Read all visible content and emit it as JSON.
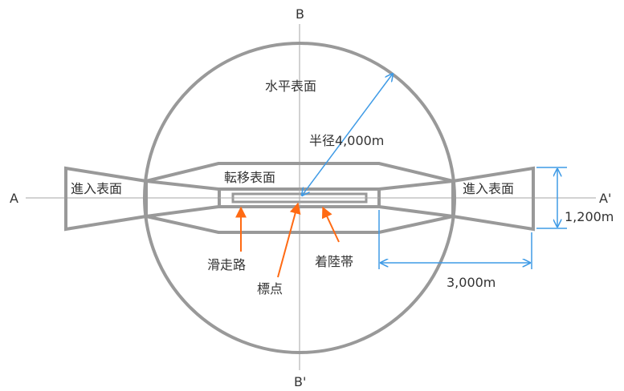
{
  "labels": {
    "axis_b_top": "B",
    "axis_b_bottom": "B'",
    "axis_a_left": "A",
    "axis_a_right": "A'",
    "horizontal_surface": "水平表面",
    "radius": "半径4,000m",
    "transitional_surface": "転移表面",
    "approach_left": "進入表面",
    "approach_right": "進入表面",
    "width_dim": "1,200m",
    "length_dim": "3,000m",
    "runway": "滑走路",
    "reference_point": "標点",
    "landing_strip": "着陸帯"
  },
  "colors": {
    "outline": "#999999",
    "axis": "#a6a6a6",
    "dimension": "#3f9be6",
    "pointer": "#ff6a13",
    "text": "#333333"
  }
}
